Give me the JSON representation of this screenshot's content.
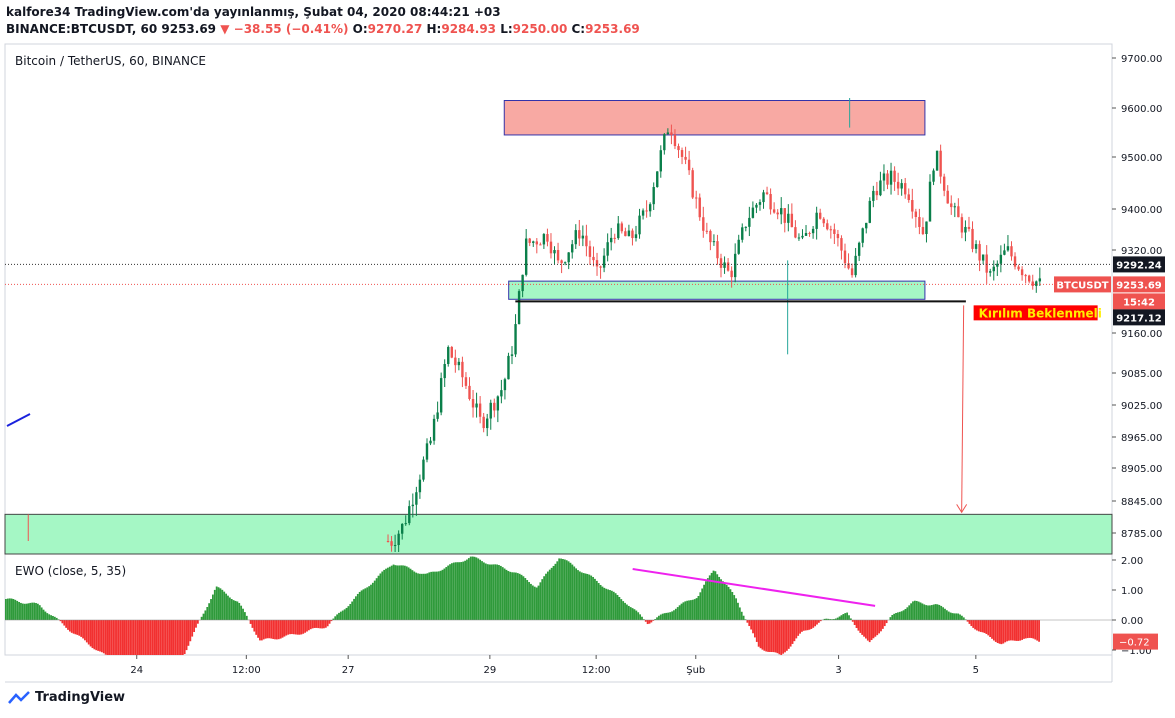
{
  "header": {
    "line1": "kalfore34 TradingView.com'da yayınlanmış, Şubat 04, 2020 08:44:21 +03",
    "symbol": "BINANCE:BTCUSDT, 60",
    "price": "9253.69",
    "change": "−38.55 (−0.41%)",
    "o_label": "O:",
    "o_value": "9270.27",
    "h_label": "H:",
    "h_value": "9284.93",
    "l_label": "L:",
    "l_value": "9250.00",
    "c_label": "C:",
    "c_value": "9253.69"
  },
  "footer": {
    "brand": "TradingView"
  },
  "colors": {
    "up": "#26a69a",
    "down": "#ef5350",
    "green_candle": "#0a7f4a",
    "resistance_fill": "#f8a9a3",
    "support_fill": "#a5f7c5",
    "ewo_up": "#2e9a3a",
    "ewo_down": "#f23030",
    "trendline": "#ee22ee",
    "zone_border": "#3333aa"
  },
  "chart_data": {
    "type": "candlestick",
    "title": "Bitcoin / TetherUS, 60, BINANCE",
    "price_axis": {
      "ticks": [
        "9700.00",
        "9600.00",
        "9500.00",
        "9400.00",
        "9320.00",
        "9160.00",
        "9085.00",
        "9025.00",
        "8965.00",
        "8905.00",
        "8845.00",
        "8785.00"
      ],
      "tick_values": [
        9700,
        9600,
        9500,
        9400,
        9320,
        9160,
        9085,
        9025,
        8965,
        8905,
        8845,
        8785
      ],
      "labels": [
        {
          "text": "9292.24",
          "value": 9292.24,
          "style": "dark"
        },
        {
          "text": "BTCUSDT",
          "value": 9253.69,
          "style": "red-symbol"
        },
        {
          "text": "9253.69",
          "value": 9253.69,
          "style": "red"
        },
        {
          "text": "15:42",
          "value": 9253.69,
          "style": "red-time"
        },
        {
          "text": "9217.12",
          "value": 9217.12,
          "style": "dark"
        }
      ]
    },
    "time_axis": {
      "ticks": [
        "24",
        "12:00",
        "27",
        "29",
        "12:00",
        "Şub",
        "3",
        "5"
      ]
    },
    "annotations": {
      "breakout_label": "Kırılım Beklenmeli",
      "resistance_zone": [
        9545,
        9615
      ],
      "support_zone": [
        9225,
        9260
      ],
      "lower_zone": [
        8765,
        8820
      ],
      "breakdown_level": 9221,
      "target_level": 8820
    },
    "candles_keypoints": [
      {
        "t": 0.0,
        "p": 8770
      },
      {
        "t": 0.35,
        "p": 8770
      },
      {
        "t": 0.36,
        "p": 8800
      },
      {
        "t": 0.385,
        "p": 8960
      },
      {
        "t": 0.4,
        "p": 9130
      },
      {
        "t": 0.415,
        "p": 9070
      },
      {
        "t": 0.43,
        "p": 8990
      },
      {
        "t": 0.45,
        "p": 9060
      },
      {
        "t": 0.46,
        "p": 9150
      },
      {
        "t": 0.47,
        "p": 9330
      },
      {
        "t": 0.49,
        "p": 9350
      },
      {
        "t": 0.5,
        "p": 9290
      },
      {
        "t": 0.52,
        "p": 9360
      },
      {
        "t": 0.535,
        "p": 9270
      },
      {
        "t": 0.55,
        "p": 9360
      },
      {
        "t": 0.565,
        "p": 9340
      },
      {
        "t": 0.58,
        "p": 9400
      },
      {
        "t": 0.6,
        "p": 9570
      },
      {
        "t": 0.615,
        "p": 9480
      },
      {
        "t": 0.635,
        "p": 9340
      },
      {
        "t": 0.655,
        "p": 9270
      },
      {
        "t": 0.67,
        "p": 9380
      },
      {
        "t": 0.685,
        "p": 9430
      },
      {
        "t": 0.7,
        "p": 9400
      },
      {
        "t": 0.72,
        "p": 9330
      },
      {
        "t": 0.735,
        "p": 9400
      },
      {
        "t": 0.75,
        "p": 9350
      },
      {
        "t": 0.765,
        "p": 9270
      },
      {
        "t": 0.785,
        "p": 9440
      },
      {
        "t": 0.8,
        "p": 9460
      },
      {
        "t": 0.815,
        "p": 9440
      },
      {
        "t": 0.83,
        "p": 9350
      },
      {
        "t": 0.84,
        "p": 9510
      },
      {
        "t": 0.855,
        "p": 9400
      },
      {
        "t": 0.875,
        "p": 9330
      },
      {
        "t": 0.89,
        "p": 9270
      },
      {
        "t": 0.905,
        "p": 9320
      },
      {
        "t": 0.92,
        "p": 9280
      },
      {
        "t": 0.935,
        "p": 9253
      }
    ],
    "ewo": {
      "title": "EWO (close, 5, 35)",
      "ticks": [
        "2.00",
        "1.00",
        "0.00",
        "−1.00"
      ],
      "tick_values": [
        2,
        1,
        0,
        -1
      ],
      "last_value": "−0.72",
      "keypoints": [
        {
          "t": 0.0,
          "v": 0.7
        },
        {
          "t": 0.03,
          "v": 0.5
        },
        {
          "t": 0.06,
          "v": -0.4
        },
        {
          "t": 0.09,
          "v": -1.2
        },
        {
          "t": 0.13,
          "v": -1.5
        },
        {
          "t": 0.16,
          "v": -1.2
        },
        {
          "t": 0.19,
          "v": 1.1
        },
        {
          "t": 0.21,
          "v": 0.6
        },
        {
          "t": 0.23,
          "v": -0.7
        },
        {
          "t": 0.26,
          "v": -0.5
        },
        {
          "t": 0.29,
          "v": -0.2
        },
        {
          "t": 0.32,
          "v": 0.9
        },
        {
          "t": 0.35,
          "v": 1.9
        },
        {
          "t": 0.38,
          "v": 1.5
        },
        {
          "t": 0.42,
          "v": 2.1
        },
        {
          "t": 0.46,
          "v": 1.6
        },
        {
          "t": 0.48,
          "v": 1.1
        },
        {
          "t": 0.5,
          "v": 2.1
        },
        {
          "t": 0.53,
          "v": 1.4
        },
        {
          "t": 0.56,
          "v": 0.6
        },
        {
          "t": 0.58,
          "v": -0.1
        },
        {
          "t": 0.6,
          "v": 0.3
        },
        {
          "t": 0.625,
          "v": 0.8
        },
        {
          "t": 0.64,
          "v": 1.7
        },
        {
          "t": 0.66,
          "v": 0.7
        },
        {
          "t": 0.68,
          "v": -0.9
        },
        {
          "t": 0.7,
          "v": -1.2
        },
        {
          "t": 0.72,
          "v": -0.4
        },
        {
          "t": 0.74,
          "v": 0.0
        },
        {
          "t": 0.76,
          "v": 0.2
        },
        {
          "t": 0.78,
          "v": -0.8
        },
        {
          "t": 0.8,
          "v": 0.1
        },
        {
          "t": 0.82,
          "v": 0.6
        },
        {
          "t": 0.84,
          "v": 0.5
        },
        {
          "t": 0.86,
          "v": 0.2
        },
        {
          "t": 0.88,
          "v": -0.4
        },
        {
          "t": 0.9,
          "v": -0.8
        },
        {
          "t": 0.92,
          "v": -0.6
        },
        {
          "t": 0.935,
          "v": -0.72
        }
      ]
    }
  }
}
